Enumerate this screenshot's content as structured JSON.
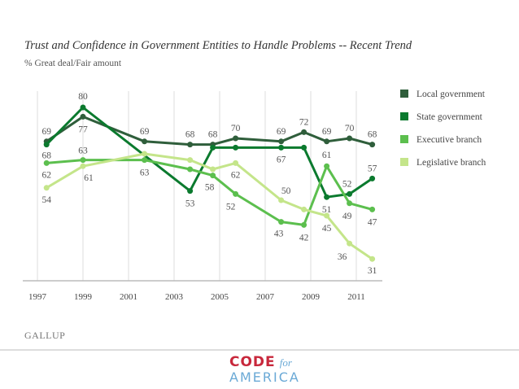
{
  "chart_data": {
    "type": "line",
    "title": "Trust and Confidence in Government Entities to Handle Problems -- Recent Trend",
    "subtitle": "% Great deal/Fair amount",
    "x_ticks": [
      "1997",
      "1999",
      "2001",
      "2003",
      "2005",
      "2007",
      "2009",
      "2011"
    ],
    "xlim": [
      1997,
      2012.2
    ],
    "ylim": [
      24,
      86
    ],
    "grid": "vertical",
    "legend_position": "right",
    "series": [
      {
        "name": "Local government",
        "color": "#2f5e3b",
        "x": [
          1997.4,
          1999,
          2001.7,
          2003.7,
          2004.7,
          2005.7,
          2007.7,
          2008.7,
          2009.7,
          2010.7,
          2011.7
        ],
        "values": [
          69,
          77,
          69,
          68,
          68,
          70,
          69,
          72,
          69,
          70,
          68
        ],
        "labels": [
          "69",
          "77",
          "69",
          "68",
          "68",
          "70",
          "69",
          "72",
          "69",
          "70",
          "68"
        ]
      },
      {
        "name": "State government",
        "color": "#0b7a2e",
        "x": [
          1997.4,
          1999,
          2003.7,
          2004.7,
          2005.7,
          2007.7,
          2008.7,
          2009.7,
          2010.7,
          2011.7
        ],
        "values": [
          68,
          80,
          53,
          67,
          67,
          67,
          67,
          51,
          52,
          57
        ],
        "labels": [
          "68",
          "80",
          "53",
          "",
          "",
          "67",
          "",
          "51",
          "52",
          "57"
        ]
      },
      {
        "name": "Executive branch",
        "color": "#5cbf4e",
        "x": [
          1997.4,
          1999,
          2001.7,
          2003.7,
          2004.7,
          2005.7,
          2007.7,
          2008.7,
          2009.7,
          2010.7,
          2011.7
        ],
        "values": [
          62,
          63,
          63,
          60,
          58,
          52,
          43,
          42,
          61,
          49,
          47
        ],
        "labels": [
          "62",
          "63",
          "63",
          "",
          "58",
          "52",
          "43",
          "42",
          "61",
          "49",
          "47"
        ]
      },
      {
        "name": "Legislative branch",
        "color": "#c4e58a",
        "x": [
          1997.4,
          1999,
          2001.7,
          2003.7,
          2004.7,
          2005.7,
          2007.7,
          2008.7,
          2009.7,
          2010.7,
          2011.7
        ],
        "values": [
          54,
          61,
          65,
          63,
          60,
          62,
          50,
          47,
          45,
          36,
          31
        ],
        "labels": [
          "54",
          "61",
          "",
          "",
          "",
          "62",
          "50",
          "",
          "45",
          "36",
          "31"
        ]
      }
    ]
  },
  "source": "GALLUP",
  "logo": {
    "line1": "CODE",
    "for": "for",
    "line2": "AMERICA"
  }
}
